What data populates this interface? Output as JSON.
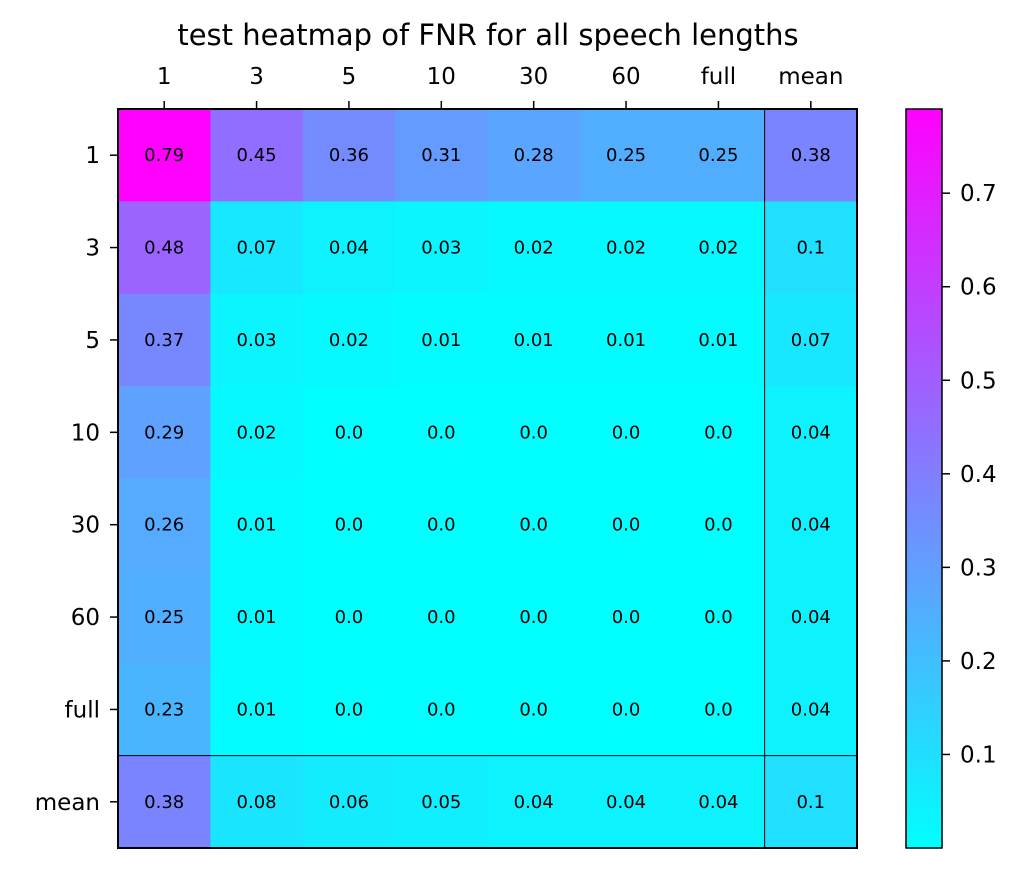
{
  "chart_data": {
    "type": "heatmap",
    "title": "test heatmap of FNR for all speech lengths",
    "x_categories": [
      "1",
      "3",
      "5",
      "10",
      "30",
      "60",
      "full",
      "mean"
    ],
    "y_categories": [
      "1",
      "3",
      "5",
      "10",
      "30",
      "60",
      "full",
      "mean"
    ],
    "x_axis_position": "top",
    "values": [
      [
        0.79,
        0.45,
        0.36,
        0.31,
        0.28,
        0.25,
        0.25,
        0.38
      ],
      [
        0.48,
        0.07,
        0.04,
        0.03,
        0.02,
        0.02,
        0.02,
        0.1
      ],
      [
        0.37,
        0.03,
        0.02,
        0.01,
        0.01,
        0.01,
        0.01,
        0.07
      ],
      [
        0.29,
        0.02,
        0.0,
        0.0,
        0.0,
        0.0,
        0.0,
        0.04
      ],
      [
        0.26,
        0.01,
        0.0,
        0.0,
        0.0,
        0.0,
        0.0,
        0.04
      ],
      [
        0.25,
        0.01,
        0.0,
        0.0,
        0.0,
        0.0,
        0.0,
        0.04
      ],
      [
        0.23,
        0.01,
        0.0,
        0.0,
        0.0,
        0.0,
        0.0,
        0.04
      ],
      [
        0.38,
        0.08,
        0.06,
        0.05,
        0.04,
        0.04,
        0.04,
        0.1
      ]
    ],
    "value_labels": [
      [
        "0.79",
        "0.45",
        "0.36",
        "0.31",
        "0.28",
        "0.25",
        "0.25",
        "0.38"
      ],
      [
        "0.48",
        "0.07",
        "0.04",
        "0.03",
        "0.02",
        "0.02",
        "0.02",
        "0.1"
      ],
      [
        "0.37",
        "0.03",
        "0.02",
        "0.01",
        "0.01",
        "0.01",
        "0.01",
        "0.07"
      ],
      [
        "0.29",
        "0.02",
        "0.0",
        "0.0",
        "0.0",
        "0.0",
        "0.0",
        "0.04"
      ],
      [
        "0.26",
        "0.01",
        "0.0",
        "0.0",
        "0.0",
        "0.0",
        "0.0",
        "0.04"
      ],
      [
        "0.25",
        "0.01",
        "0.0",
        "0.0",
        "0.0",
        "0.0",
        "0.0",
        "0.04"
      ],
      [
        "0.23",
        "0.01",
        "0.0",
        "0.0",
        "0.0",
        "0.0",
        "0.0",
        "0.04"
      ],
      [
        "0.38",
        "0.08",
        "0.06",
        "0.05",
        "0.04",
        "0.04",
        "0.04",
        "0.1"
      ]
    ],
    "colormap": "cool",
    "colormap_colors": [
      "#00ffff",
      "#ff00ff"
    ],
    "color_range": [
      0.0,
      0.79
    ],
    "colorbar_ticks": [
      0.1,
      0.2,
      0.3,
      0.4,
      0.5,
      0.6,
      0.7
    ],
    "colorbar_position": "right",
    "separators": "lines before the mean row and mean column",
    "grid": false
  }
}
